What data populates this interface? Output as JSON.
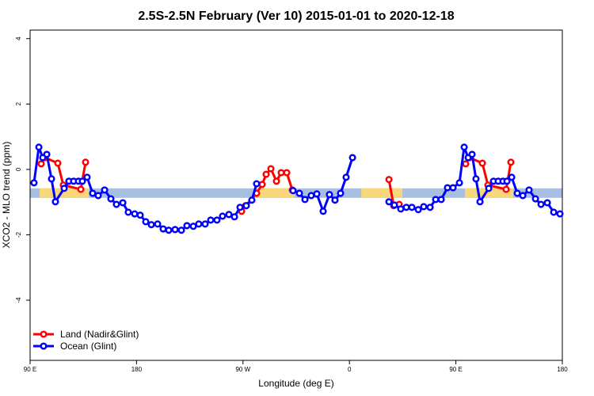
{
  "chart_data": {
    "type": "line",
    "title": "2.5S-2.5N February (Ver 10)   2015-01-01 to 2020-12-18",
    "x_label": "Longitude (deg E)",
    "y_label": "XCO2 - MLO trend (ppm)",
    "xlim": [
      90,
      540
    ],
    "ylim": [
      -5.84,
      4.26
    ],
    "xticks": [
      {
        "value": 90,
        "label": "90 E"
      },
      180,
      {
        "value": 270,
        "label": "90 W"
      },
      {
        "value": 360,
        "label": "0"
      },
      {
        "value": 450,
        "label": "90 E"
      },
      {
        "value": 540,
        "label": "180"
      }
    ],
    "yticks": [
      -4,
      -2,
      0,
      2,
      4
    ],
    "legend": "bottom-left",
    "band": {
      "ylim": [
        -0.87,
        -0.58
      ],
      "color": "#a7bfe0"
    },
    "land_spans": {
      "color": "#f7d67c",
      "spans": [
        [
          98,
          139.6
        ],
        [
          280.2,
          313.7
        ],
        [
          370,
          404.8
        ],
        [
          457.6,
          498.5
        ]
      ]
    },
    "series": [
      {
        "name": "Land (Nadir&Glint)",
        "color": "#ff0000",
        "x": [
          99.4,
          102.7,
          113.4,
          118.1,
          132.9,
          136.9,
          null,
          268.8,
          272.2,
          281.5,
          286.2,
          289.6,
          293.6,
          298.3,
          302.3,
          307,
          311.7,
          null,
          393.4,
          397.4,
          402.1,
          null,
          458.3,
          461.7,
          472.4,
          477.1,
          492.5,
          496.5
        ],
        "values": [
          0.17,
          0.36,
          0.19,
          -0.48,
          -0.61,
          0.22,
          null,
          -1.28,
          -1.11,
          -0.73,
          -0.46,
          -0.15,
          0.02,
          -0.36,
          -0.1,
          -0.1,
          -0.63,
          null,
          -0.31,
          -1.11,
          -1.07,
          null,
          0.17,
          0.36,
          0.19,
          -0.48,
          -0.61,
          0.22
        ]
      },
      {
        "name": "Ocean (Glint)",
        "color": "#0000ff",
        "x": [
          93.3,
          97.4,
          100.7,
          104.1,
          108.1,
          111.4,
          118.8,
          122.8,
          126.8,
          130.9,
          134.2,
          138.2,
          142.9,
          147.6,
          153,
          158.3,
          163,
          168.4,
          173,
          178.4,
          183.1,
          187.8,
          192.5,
          197.8,
          202.5,
          207.2,
          212.6,
          217.9,
          222.6,
          228,
          232.6,
          238,
          242.7,
          248,
          252.7,
          258.1,
          262.8,
          267.5,
          272.8,
          277.5,
          281.5,
          null,
          312.3,
          317.7,
          322.4,
          327.7,
          332.4,
          337.8,
          343.1,
          347.8,
          352.5,
          357.2,
          362.6,
          null,
          393.4,
          398,
          403.4,
          408.1,
          412.8,
          418.2,
          422.8,
          428.2,
          432.9,
          437.6,
          442.9,
          447.6,
          453,
          457,
          460.4,
          463.7,
          467,
          470.4,
          477.8,
          481.8,
          485.8,
          489.8,
          493.2,
          497.2,
          501.9,
          506.6,
          511.9,
          517.3,
          522,
          527.3,
          532.7,
          538
        ],
        "values": [
          -0.41,
          0.68,
          0.36,
          0.46,
          -0.29,
          -0.99,
          -0.58,
          -0.36,
          -0.36,
          -0.36,
          -0.36,
          -0.24,
          -0.73,
          -0.8,
          -0.63,
          -0.9,
          -1.07,
          -1.02,
          -1.31,
          -1.36,
          -1.4,
          -1.6,
          -1.69,
          -1.67,
          -1.82,
          -1.86,
          -1.84,
          -1.86,
          -1.72,
          -1.74,
          -1.67,
          -1.67,
          -1.55,
          -1.55,
          -1.43,
          -1.38,
          -1.45,
          -1.16,
          -1.11,
          -0.94,
          -0.44,
          null,
          -0.65,
          -0.73,
          -0.92,
          -0.8,
          -0.75,
          -1.28,
          -0.77,
          -0.94,
          -0.73,
          -0.24,
          0.36,
          null,
          -0.99,
          -1.09,
          -1.21,
          -1.16,
          -1.16,
          -1.23,
          -1.14,
          -1.16,
          -0.92,
          -0.92,
          -0.56,
          -0.56,
          -0.41,
          0.68,
          0.36,
          0.46,
          -0.29,
          -0.99,
          -0.58,
          -0.36,
          -0.36,
          -0.36,
          -0.36,
          -0.24,
          -0.73,
          -0.8,
          -0.63,
          -0.9,
          -1.07,
          -1.02,
          -1.31,
          -1.36
        ]
      }
    ]
  }
}
